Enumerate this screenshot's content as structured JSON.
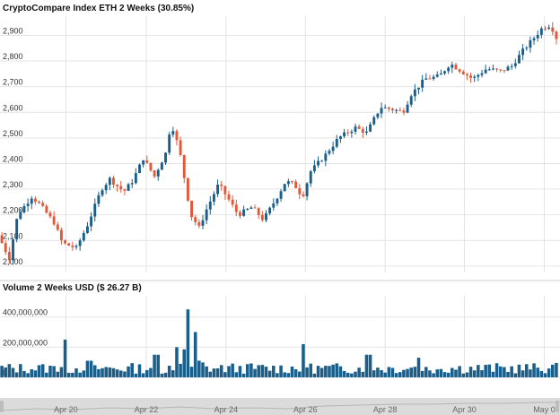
{
  "chart_data": [
    {
      "type": "candlestick",
      "title": "CryptoCompare Index ETH 2 Weeks (30.85%)",
      "y_ticks": [
        2000,
        2100,
        2200,
        2300,
        2400,
        2500,
        2600,
        2700,
        2800,
        2900
      ],
      "y_tick_labels": [
        "2,000",
        "2,100",
        "2,200",
        "2,300",
        "2,400",
        "2,500",
        "2,600",
        "2,700",
        "2,800",
        "2,900"
      ],
      "ylim": [
        1975,
        2975
      ],
      "grid": true,
      "colors": {
        "up": "#1a5e8a",
        "down": "#e05a3a",
        "grid": "#e4e4e4"
      },
      "price_path": [
        [
          0,
          2120
        ],
        [
          0.02,
          2030
        ],
        [
          0.035,
          2200
        ],
        [
          0.06,
          2270
        ],
        [
          0.075,
          2240
        ],
        [
          0.1,
          2170
        ],
        [
          0.115,
          2090
        ],
        [
          0.14,
          2070
        ],
        [
          0.16,
          2160
        ],
        [
          0.185,
          2300
        ],
        [
          0.2,
          2340
        ],
        [
          0.225,
          2290
        ],
        [
          0.24,
          2330
        ],
        [
          0.26,
          2420
        ],
        [
          0.28,
          2350
        ],
        [
          0.3,
          2440
        ],
        [
          0.31,
          2560
        ],
        [
          0.325,
          2450
        ],
        [
          0.345,
          2200
        ],
        [
          0.36,
          2150
        ],
        [
          0.375,
          2230
        ],
        [
          0.395,
          2320
        ],
        [
          0.41,
          2270
        ],
        [
          0.43,
          2200
        ],
        [
          0.455,
          2230
        ],
        [
          0.475,
          2180
        ],
        [
          0.5,
          2270
        ],
        [
          0.515,
          2330
        ],
        [
          0.53,
          2320
        ],
        [
          0.545,
          2270
        ],
        [
          0.56,
          2370
        ],
        [
          0.585,
          2430
        ],
        [
          0.61,
          2500
        ],
        [
          0.64,
          2540
        ],
        [
          0.66,
          2520
        ],
        [
          0.685,
          2620
        ],
        [
          0.71,
          2610
        ],
        [
          0.725,
          2600
        ],
        [
          0.74,
          2670
        ],
        [
          0.765,
          2730
        ],
        [
          0.79,
          2740
        ],
        [
          0.81,
          2790
        ],
        [
          0.83,
          2760
        ],
        [
          0.85,
          2730
        ],
        [
          0.875,
          2770
        ],
        [
          0.9,
          2760
        ],
        [
          0.92,
          2780
        ],
        [
          0.94,
          2840
        ],
        [
          0.96,
          2890
        ],
        [
          0.975,
          2930
        ],
        [
          0.99,
          2940
        ],
        [
          1.0,
          2890
        ]
      ],
      "candle_count": 150
    },
    {
      "type": "bar",
      "title": "Volume 2 Weeks USD ($ 26.27 B)",
      "y_ticks": [
        0,
        200000000,
        400000000
      ],
      "y_tick_labels": [
        "0",
        "200,000,000",
        "400,000,000"
      ],
      "ylim": [
        0,
        540000000
      ],
      "bar_color": "#1a5e8a",
      "volume_spikes": [
        [
          0.115,
          250000000
        ],
        [
          0.16,
          110000000
        ],
        [
          0.28,
          150000000
        ],
        [
          0.315,
          200000000
        ],
        [
          0.335,
          450000000
        ],
        [
          0.35,
          300000000
        ],
        [
          0.545,
          220000000
        ],
        [
          0.66,
          150000000
        ],
        [
          0.75,
          130000000
        ]
      ],
      "base_volume": 60000000,
      "bar_count": 150
    }
  ],
  "x_axis": {
    "labels": [
      "Apr 20",
      "Apr 22",
      "Apr 24",
      "Apr 26",
      "Apr 28",
      "Apr 30",
      "May 0"
    ],
    "positions": [
      0.118,
      0.262,
      0.405,
      0.547,
      0.69,
      0.832,
      0.975
    ]
  }
}
